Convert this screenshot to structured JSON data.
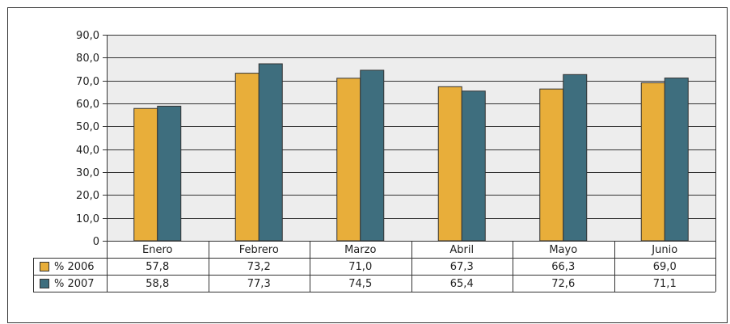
{
  "chart_data": {
    "type": "bar",
    "categories": [
      "Enero",
      "Febrero",
      "Marzo",
      "Abril",
      "Mayo",
      "Junio"
    ],
    "series": [
      {
        "name": "% 2006",
        "values": [
          57.8,
          73.2,
          71.0,
          67.3,
          66.3,
          69.0
        ],
        "labels": [
          "57,8",
          "73,2",
          "71,0",
          "67,3",
          "66,3",
          "69,0"
        ],
        "color": "#E8AE3A"
      },
      {
        "name": "% 2007",
        "values": [
          58.8,
          77.3,
          74.5,
          65.4,
          72.6,
          71.1
        ],
        "labels": [
          "58,8",
          "77,3",
          "74,5",
          "65,4",
          "72,6",
          "71,1"
        ],
        "color": "#3E6E7E"
      }
    ],
    "ylim": [
      0,
      90
    ],
    "yticks": [
      {
        "value": 0,
        "label": "0"
      },
      {
        "value": 10,
        "label": "10,0"
      },
      {
        "value": 20,
        "label": "20,0"
      },
      {
        "value": 30,
        "label": "30,0"
      },
      {
        "value": 40,
        "label": "40,0"
      },
      {
        "value": 50,
        "label": "50,0"
      },
      {
        "value": 60,
        "label": "60,0"
      },
      {
        "value": 70,
        "label": "70,0"
      },
      {
        "value": 80,
        "label": "80,0"
      },
      {
        "value": 90,
        "label": "90,0"
      }
    ],
    "grid": true,
    "plot_background": "#EDEDED",
    "legend": "data-table"
  }
}
